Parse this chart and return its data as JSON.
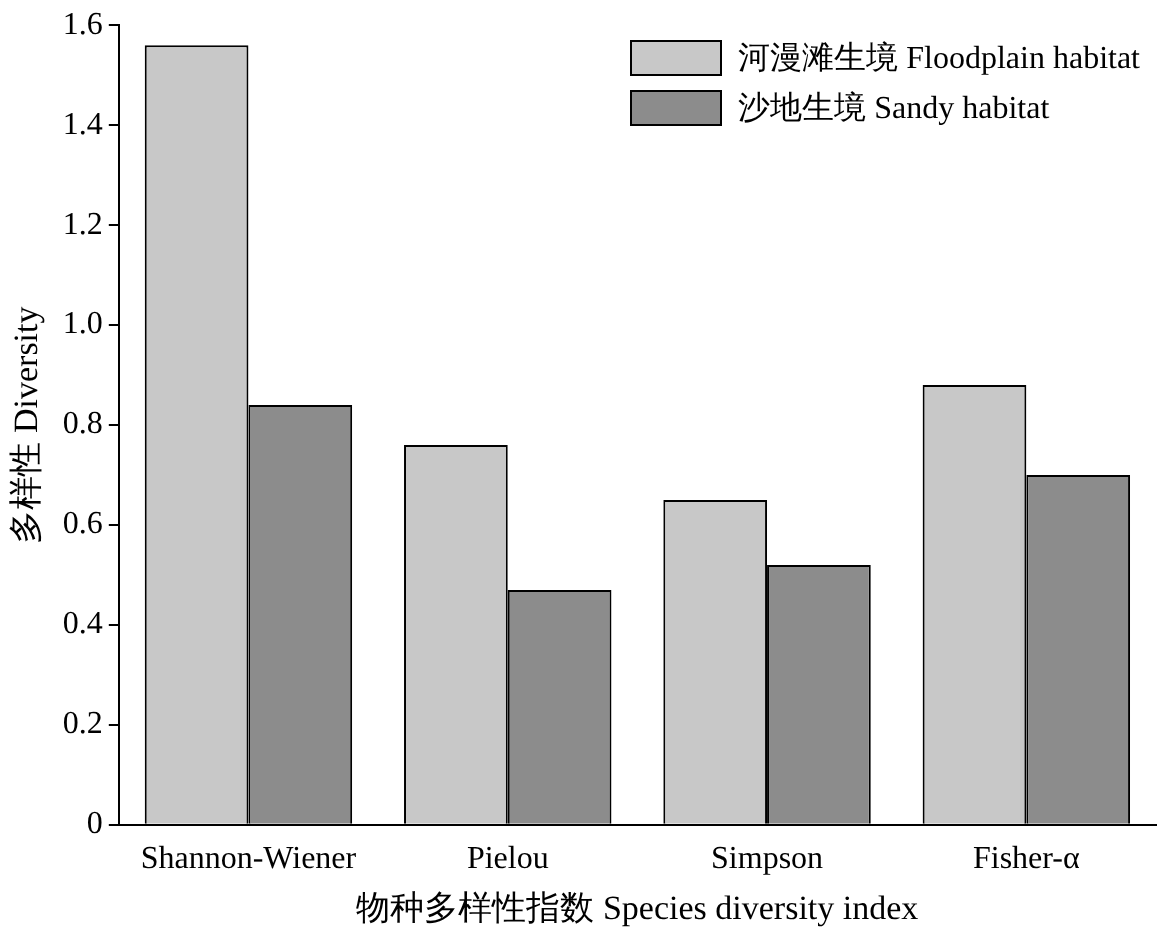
{
  "chart_data": {
    "type": "bar",
    "xlabel": "物种多样性指数 Species diversity index",
    "ylabel": "多样性 Diversity",
    "categories": [
      "Shannon-Wiener",
      "Pielou",
      "Simpson",
      "Fisher-α"
    ],
    "series": [
      {
        "name": "河漫滩生境 Floodplain habitat",
        "color": "#c8c8c8",
        "values": [
          1.56,
          0.76,
          0.65,
          0.88
        ]
      },
      {
        "name": "沙地生境 Sandy habitat",
        "color": "#8c8c8c",
        "values": [
          0.84,
          0.47,
          0.52,
          0.7
        ]
      }
    ],
    "ylim": [
      0,
      1.6
    ],
    "yticks": [
      {
        "value": 0,
        "label": "0"
      },
      0.2,
      0.4,
      0.6,
      0.8,
      {
        "value": 1,
        "label": "1.0"
      },
      1.2,
      1.4,
      1.6
    ],
    "grid": false,
    "legend": "top right"
  }
}
